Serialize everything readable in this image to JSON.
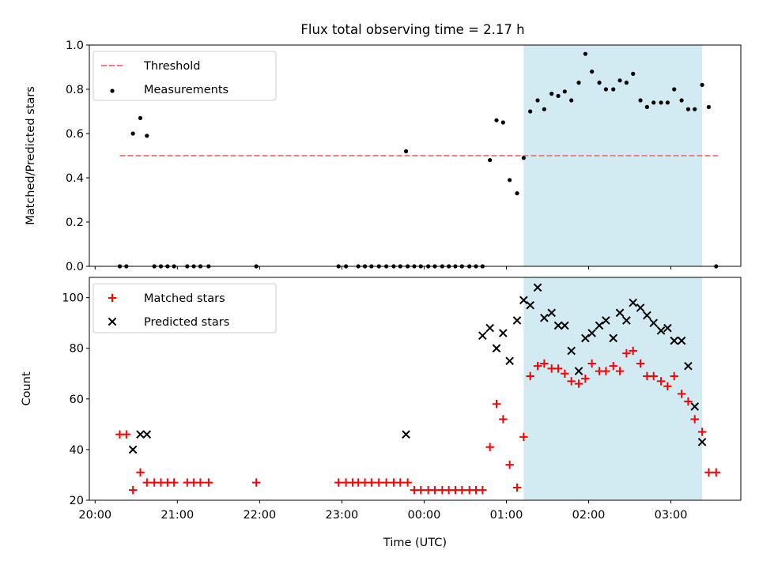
{
  "title": "Flux total observing time = 2.17 h",
  "colors": {
    "threshold": "#f08080",
    "measurement": "#000000",
    "matched": "#ff0000",
    "predicted": "#000000",
    "highlight": "#add8e6"
  },
  "chart_data": [
    {
      "type": "scatter",
      "ylabel": "Matched/Predicted stars",
      "ylim": [
        0,
        1.0
      ],
      "yticks": [
        0.0,
        0.2,
        0.4,
        0.6,
        0.8,
        1.0
      ],
      "ytick_labels": [
        "0.0",
        "0.2",
        "0.4",
        "0.6",
        "0.8",
        "1.0"
      ],
      "x_unit": "hours_since_20:00_UTC",
      "xlim": [
        -0.07,
        7.85
      ],
      "highlight_span": [
        5.21,
        7.38
      ],
      "legend": {
        "placement": "top-left",
        "entries": [
          "Threshold",
          "Measurements"
        ]
      },
      "threshold": {
        "name": "Threshold",
        "value": 0.5,
        "x_range": [
          0.3,
          7.57
        ]
      },
      "series": [
        {
          "name": "Measurements",
          "marker": "dot",
          "x": [
            0.3,
            0.38,
            0.46,
            0.55,
            0.63,
            0.72,
            0.8,
            0.88,
            0.96,
            1.12,
            1.2,
            1.28,
            1.38,
            1.96,
            2.96,
            3.05,
            3.2,
            3.28,
            3.36,
            3.45,
            3.54,
            3.63,
            3.71,
            3.8,
            3.88,
            3.78,
            3.96,
            4.05,
            4.13,
            4.22,
            4.3,
            4.38,
            4.46,
            4.55,
            4.63,
            4.71,
            4.8,
            4.88,
            4.96,
            5.04,
            5.13,
            5.21,
            5.29,
            5.38,
            5.46,
            5.55,
            5.63,
            5.71,
            5.79,
            5.88,
            5.96,
            6.04,
            6.13,
            6.21,
            6.3,
            6.38,
            6.46,
            6.54,
            6.63,
            6.71,
            6.79,
            6.88,
            6.96,
            7.04,
            7.13,
            7.21,
            7.29,
            7.38,
            7.46,
            7.55
          ],
          "y": [
            0.0,
            0.0,
            0.6,
            0.67,
            0.59,
            0.0,
            0.0,
            0.0,
            0.0,
            0.0,
            0.0,
            0.0,
            0.0,
            0.0,
            0.0,
            0.0,
            0.0,
            0.0,
            0.0,
            0.0,
            0.0,
            0.0,
            0.0,
            0.0,
            0.0,
            0.52,
            0.0,
            0.0,
            0.0,
            0.0,
            0.0,
            0.0,
            0.0,
            0.0,
            0.0,
            0.0,
            0.48,
            0.66,
            0.65,
            0.39,
            0.33,
            0.49,
            0.7,
            0.75,
            0.71,
            0.78,
            0.77,
            0.79,
            0.75,
            0.83,
            0.96,
            0.88,
            0.83,
            0.8,
            0.8,
            0.84,
            0.83,
            0.87,
            0.75,
            0.72,
            0.74,
            0.74,
            0.74,
            0.8,
            0.75,
            0.71,
            0.71,
            0.82,
            0.72,
            0.0
          ]
        }
      ]
    },
    {
      "type": "scatter",
      "xlabel": "Time (UTC)",
      "ylabel": "Count",
      "ylim": [
        20,
        108
      ],
      "yticks": [
        20,
        40,
        60,
        80,
        100
      ],
      "ytick_labels": [
        "20",
        "40",
        "60",
        "80",
        "100"
      ],
      "x_unit": "hours_since_20:00_UTC",
      "xlim": [
        -0.07,
        7.85
      ],
      "xticks": [
        0,
        1,
        2,
        3,
        4,
        5,
        6,
        7
      ],
      "xtick_labels": [
        "20:00",
        "21:00",
        "22:00",
        "23:00",
        "00:00",
        "01:00",
        "02:00",
        "03:00"
      ],
      "highlight_span": [
        5.21,
        7.38
      ],
      "legend": {
        "placement": "top-left",
        "entries": [
          "Matched stars",
          "Predicted stars"
        ]
      },
      "series": [
        {
          "name": "Matched stars",
          "marker": "plus",
          "x": [
            0.3,
            0.38,
            0.46,
            0.55,
            0.63,
            0.72,
            0.8,
            0.88,
            0.96,
            1.12,
            1.2,
            1.28,
            1.38,
            1.96,
            2.96,
            3.05,
            3.13,
            3.2,
            3.28,
            3.36,
            3.45,
            3.54,
            3.63,
            3.71,
            3.8,
            3.88,
            3.96,
            4.05,
            4.13,
            4.22,
            4.3,
            4.38,
            4.46,
            4.55,
            4.63,
            4.71,
            4.8,
            4.88,
            4.96,
            5.04,
            5.13,
            5.21,
            5.29,
            5.38,
            5.46,
            5.55,
            5.63,
            5.71,
            5.79,
            5.88,
            5.96,
            6.04,
            6.13,
            6.21,
            6.3,
            6.38,
            6.46,
            6.54,
            6.63,
            6.71,
            6.79,
            6.88,
            6.96,
            7.04,
            7.13,
            7.21,
            7.29,
            7.38,
            7.46,
            7.55
          ],
          "y": [
            46,
            46,
            24,
            31,
            27,
            27,
            27,
            27,
            27,
            27,
            27,
            27,
            27,
            27,
            27,
            27,
            27,
            27,
            27,
            27,
            27,
            27,
            27,
            27,
            27,
            24,
            24,
            24,
            24,
            24,
            24,
            24,
            24,
            24,
            24,
            24,
            41,
            58,
            52,
            34,
            25,
            45,
            69,
            73,
            74,
            72,
            72,
            70,
            67,
            66,
            68,
            74,
            71,
            71,
            73,
            71,
            78,
            79,
            74,
            69,
            69,
            67,
            65,
            69,
            62,
            59,
            52,
            47,
            31,
            31
          ]
        },
        {
          "name": "Predicted stars",
          "marker": "x",
          "x": [
            0.46,
            0.55,
            0.63,
            3.78,
            4.71,
            4.8,
            4.88,
            4.96,
            5.04,
            5.13,
            5.21,
            5.29,
            5.38,
            5.46,
            5.55,
            5.63,
            5.71,
            5.79,
            5.88,
            5.96,
            6.04,
            6.13,
            6.21,
            6.3,
            6.38,
            6.46,
            6.54,
            6.63,
            6.71,
            6.79,
            6.88,
            6.96,
            7.04,
            7.13,
            7.21,
            7.29,
            7.38
          ],
          "y": [
            40,
            46,
            46,
            46,
            85,
            88,
            80,
            86,
            75,
            91,
            99,
            97,
            104,
            92,
            94,
            89,
            89,
            79,
            71,
            84,
            86,
            89,
            91,
            84,
            94,
            91,
            98,
            96,
            93,
            90,
            87,
            88,
            83,
            83,
            73,
            57,
            43
          ]
        }
      ]
    }
  ]
}
